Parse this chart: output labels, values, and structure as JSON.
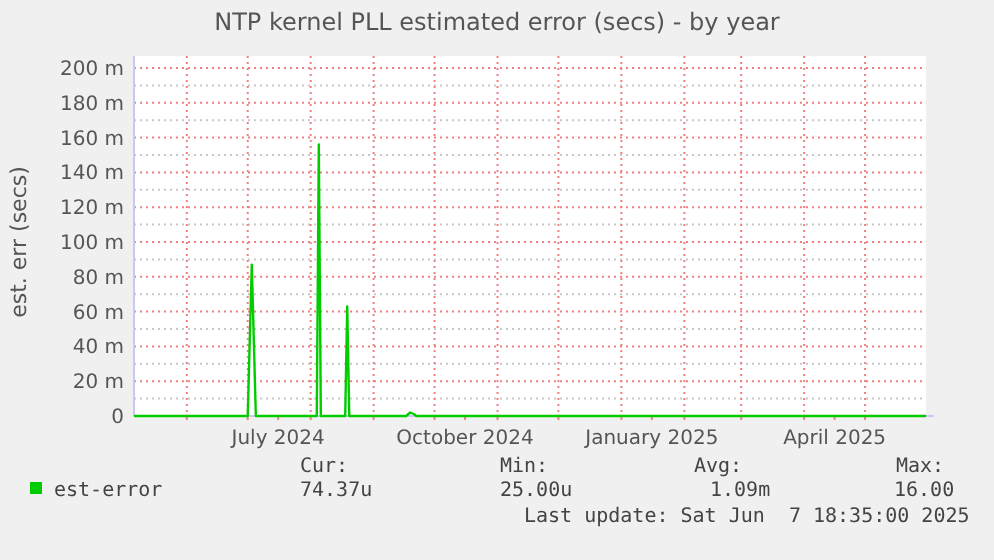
{
  "chart_data": {
    "type": "line",
    "title": "NTP kernel PLL estimated error (secs) - by year",
    "ylabel": "est. err (secs)",
    "x": [
      "2024-05-06",
      "2024-06-30",
      "2024-07-01",
      "2024-07-03",
      "2024-07-05",
      "2024-08-03",
      "2024-08-04",
      "2024-08-05",
      "2024-08-06",
      "2024-08-17",
      "2024-08-18",
      "2024-08-19",
      "2024-08-20",
      "2024-09-16",
      "2024-09-17",
      "2024-09-19",
      "2024-09-21",
      "2024-09-22",
      "2025-05-31"
    ],
    "series": [
      {
        "name": "est-error",
        "color": "#00cc00",
        "values": [
          0,
          0,
          0,
          87,
          0,
          0,
          0,
          156,
          0,
          0,
          0,
          63,
          0,
          0,
          0,
          2,
          1,
          0,
          0
        ]
      }
    ],
    "xlim": [
      "2024-05-06",
      "2025-05-31"
    ],
    "xticks": [
      {
        "value": "2024-06-01",
        "label": null
      },
      {
        "value": "2024-07-01",
        "label": null
      },
      {
        "value": "2024-07-16",
        "label": "July 2024"
      },
      {
        "value": "2024-08-01",
        "label": null
      },
      {
        "value": "2024-09-01",
        "label": null
      },
      {
        "value": "2024-10-01",
        "label": null
      },
      {
        "value": "2024-10-16",
        "label": "October 2024"
      },
      {
        "value": "2024-11-01",
        "label": null
      },
      {
        "value": "2024-12-01",
        "label": null
      },
      {
        "value": "2025-01-01",
        "label": null
      },
      {
        "value": "2025-01-16",
        "label": "January 2025"
      },
      {
        "value": "2025-02-01",
        "label": null
      },
      {
        "value": "2025-03-01",
        "label": null
      },
      {
        "value": "2025-04-01",
        "label": null
      },
      {
        "value": "2025-04-16",
        "label": "April 2025"
      },
      {
        "value": "2025-05-01",
        "label": null
      }
    ],
    "ylim": [
      0,
      200
    ],
    "yticks": [
      0,
      {
        "value": 20,
        "label": "20 m"
      },
      {
        "value": 40,
        "label": "40 m"
      },
      {
        "value": 60,
        "label": "60 m"
      },
      {
        "value": 80,
        "label": "80 m"
      },
      {
        "value": 100,
        "label": "100 m"
      },
      {
        "value": 120,
        "label": "120 m"
      },
      {
        "value": 140,
        "label": "140 m"
      },
      {
        "value": 160,
        "label": "160 m"
      },
      {
        "value": 180,
        "label": "180 m"
      },
      {
        "value": 200,
        "label": "200 m"
      }
    ],
    "grid": true,
    "legend": "bottom",
    "marker": "none",
    "line_style": "solid",
    "annotations": [
      "Cur:",
      "74.37u",
      "Min:",
      "25.00u",
      "Avg:",
      "1.09m",
      "Max:",
      "16.00",
      "Last update: Sat Jun  7 18:35:00 2025"
    ]
  }
}
